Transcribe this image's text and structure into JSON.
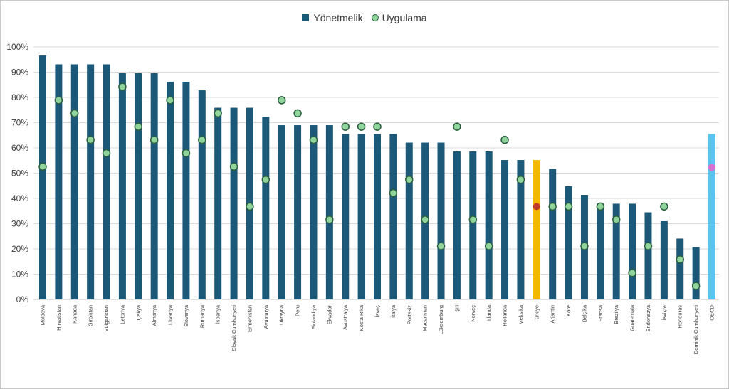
{
  "chart_data": {
    "type": "bar",
    "title": "",
    "xlabel": "",
    "ylabel": "",
    "ylim": [
      0,
      100
    ],
    "y_ticks": [
      "0%",
      "10%",
      "20%",
      "30%",
      "40%",
      "50%",
      "60%",
      "70%",
      "80%",
      "90%",
      "100%"
    ],
    "grid": true,
    "legend_position": "top-center",
    "legend": [
      "Yönetmelik",
      "Uygulama"
    ],
    "categories": [
      "Moldova",
      "Hırvatistan",
      "Kanada",
      "Sırbistan",
      "Bulgaristan",
      "Letonya",
      "Çekya",
      "Almanya",
      "Litvanya",
      "Slovenya",
      "Romanya",
      "İspanya",
      "Slovak Cumhuriyeti",
      "Ermenistan",
      "Avusturya",
      "Ukrayna",
      "Peru",
      "Finlandiya",
      "Ekvador",
      "Avustralya",
      "Kosta Rika",
      "İsveç",
      "İtalya",
      "Portekiz",
      "Macaristan",
      "Lüksemburg",
      "Şili",
      "Norveç",
      "İrlanda",
      "Hollanda",
      "Meksika",
      "Türkiye",
      "Arjantin",
      "Kore",
      "Belçika",
      "Fransa",
      "Brezilya",
      "Guatemala",
      "Endonezya",
      "İsviçre",
      "Honduras",
      "Dominik Cumhuriyeti",
      "OECD"
    ],
    "series": [
      {
        "name": "Yönetmelik",
        "type": "bar",
        "values": [
          96.6,
          93.1,
          93.1,
          93.1,
          93.1,
          89.6,
          89.6,
          89.6,
          86.2,
          86.2,
          82.8,
          75.9,
          75.9,
          75.9,
          72.4,
          69.0,
          69.0,
          69.0,
          69.0,
          65.5,
          65.5,
          65.5,
          65.5,
          62.1,
          62.1,
          62.1,
          58.6,
          58.6,
          58.6,
          55.2,
          55.2,
          55.2,
          51.7,
          44.8,
          41.4,
          37.9,
          37.9,
          37.9,
          34.5,
          31.0,
          24.1,
          20.7,
          65.5
        ]
      },
      {
        "name": "Uygulama",
        "type": "scatter",
        "values": [
          52.6,
          78.9,
          73.7,
          63.2,
          57.9,
          84.2,
          68.4,
          63.2,
          78.9,
          57.9,
          63.2,
          73.7,
          52.6,
          36.8,
          47.4,
          78.9,
          73.7,
          63.2,
          31.6,
          68.4,
          68.4,
          68.4,
          42.1,
          47.4,
          31.6,
          21.1,
          68.4,
          31.6,
          21.1,
          63.2,
          47.4,
          36.8,
          36.8,
          36.8,
          21.1,
          36.8,
          31.6,
          10.5,
          21.1,
          36.8,
          15.8,
          5.3,
          52.3
        ]
      }
    ],
    "colors": {
      "bar": "#1c5878",
      "bar_highlight_turkiye": "#f5b800",
      "bar_highlight_oecd": "#5bc4ee",
      "dot": "#8fd49a",
      "dot_border": "#2b5e3f",
      "dot_highlight_turkiye": "#c0392b",
      "dot_highlight_oecd": "#d673cf",
      "grid": "#d9d9d9",
      "axis": "#bfbfbf"
    }
  }
}
